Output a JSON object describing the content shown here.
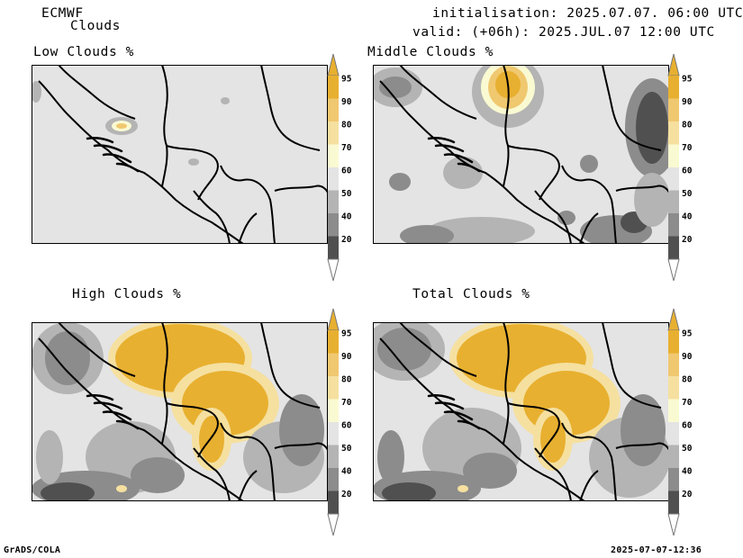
{
  "header": {
    "model": "ECMWF",
    "product": "Clouds",
    "init_line": "initialisation: 2025.07.07. 06:00 UTC",
    "valid_line": "valid: (+06h): 2025.JUL.07 12:00 UTC"
  },
  "panels": [
    {
      "title": "Low Clouds %"
    },
    {
      "title": "Middle Clouds %"
    },
    {
      "title": "High Clouds %"
    },
    {
      "title": "Total Clouds %"
    }
  ],
  "colorbar": {
    "levels": [
      "95",
      "90",
      "80",
      "70",
      "60",
      "50",
      "40",
      "20"
    ],
    "colors": {
      "95": "#e8b030",
      "90": "#f0c870",
      "80": "#f5e0a0",
      "70": "#fafad2",
      "60": "#e4e4e4",
      "50": "#b4b4b4",
      "40": "#8c8c8c",
      "20": "#505050"
    }
  },
  "colors": {
    "land": "#e4e4e4",
    "border": "#000000"
  },
  "footer": {
    "left": "GrADS/COLA",
    "right": "2025-07-07-12:36"
  }
}
